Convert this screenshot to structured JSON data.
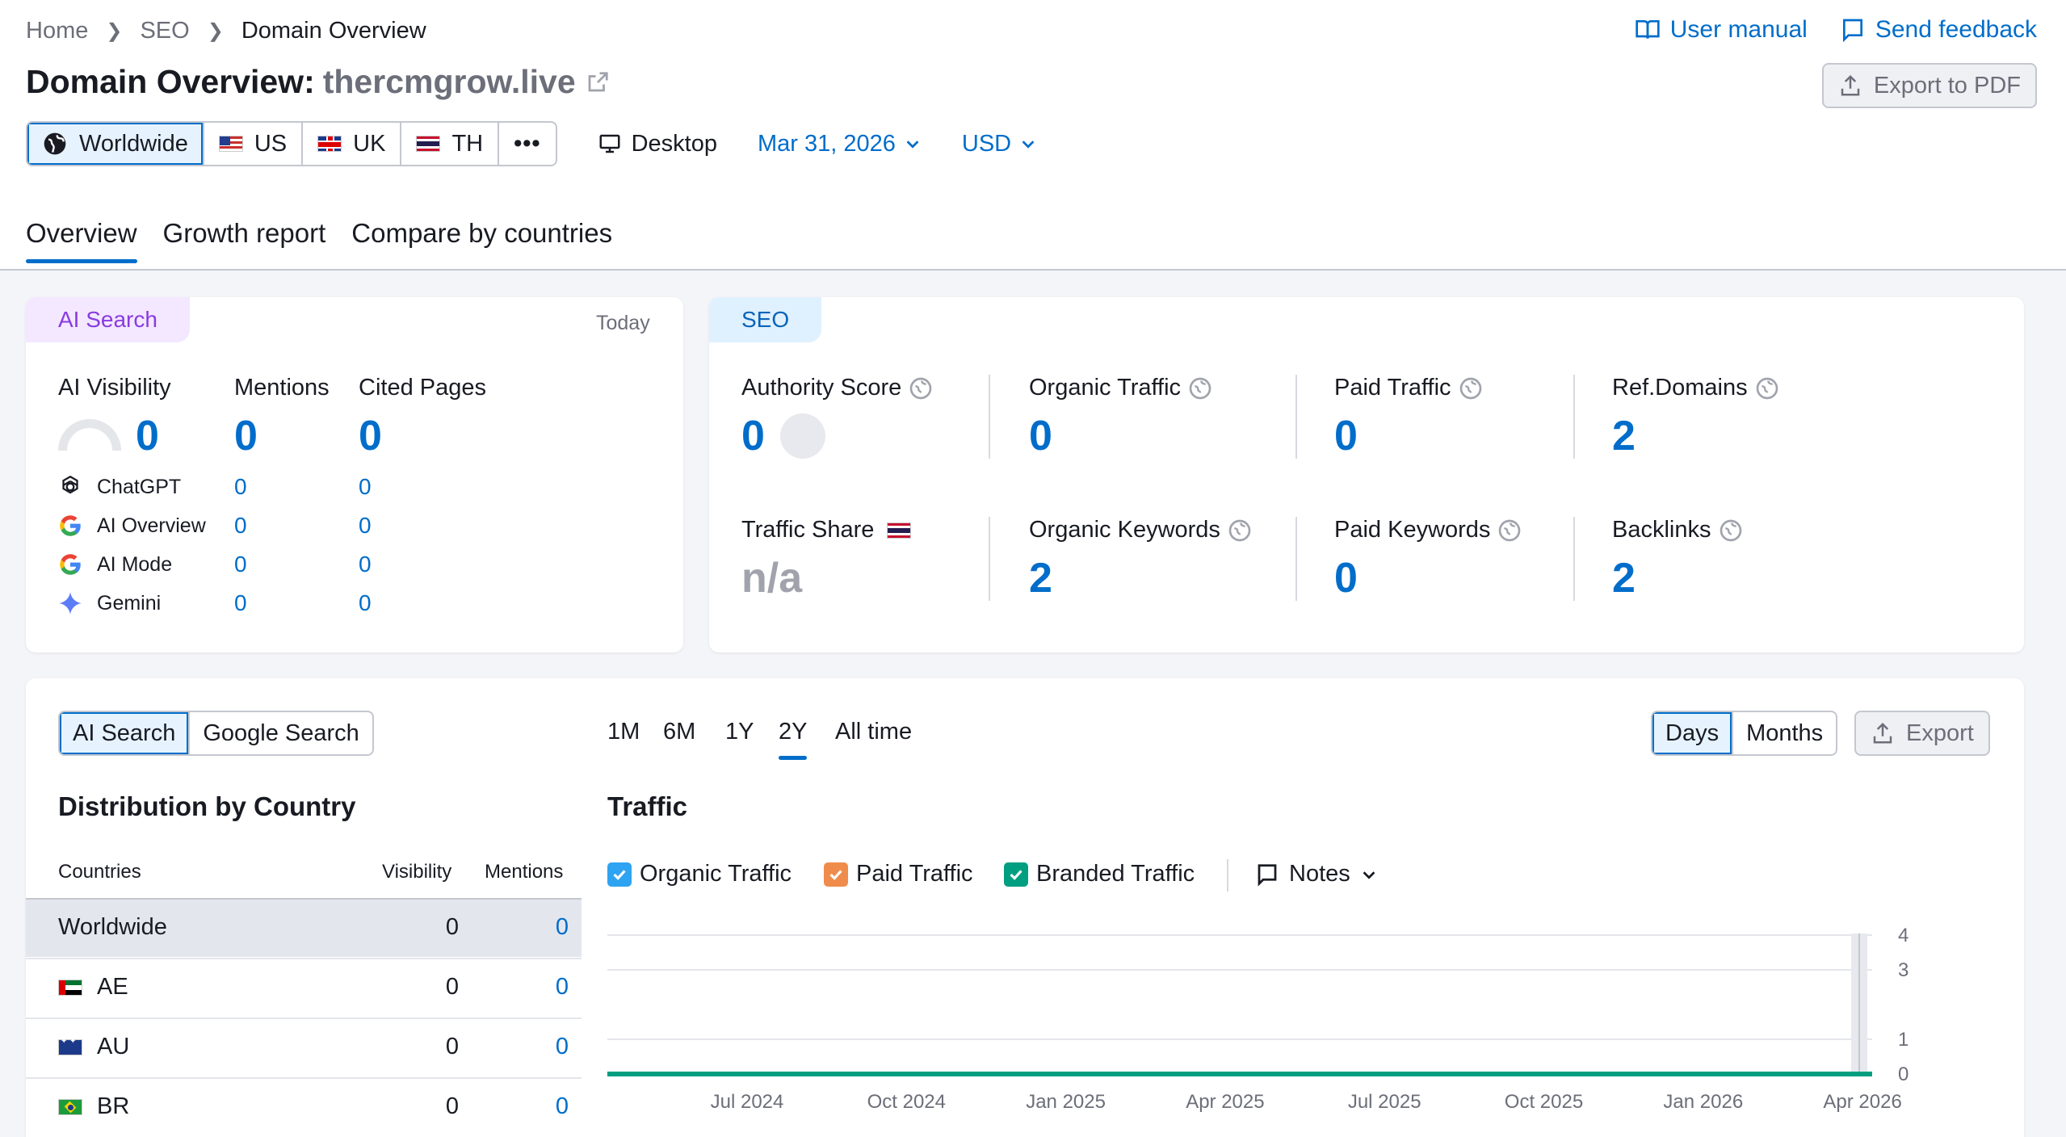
{
  "breadcrumb": {
    "items": [
      "Home",
      "SEO",
      "Domain Overview"
    ]
  },
  "header": {
    "title": "Domain Overview:",
    "domain": "thercmgrow.live",
    "user_manual": "User manual",
    "send_feedback": "Send feedback",
    "export_pdf": "Export to PDF"
  },
  "databases": [
    {
      "label": "Worldwide",
      "icon": "globe-icon"
    },
    {
      "label": "US",
      "icon": "flag-us"
    },
    {
      "label": "UK",
      "icon": "flag-uk"
    },
    {
      "label": "TH",
      "icon": "flag-th"
    }
  ],
  "more_label": "•••",
  "device": "Desktop",
  "date": "Mar 31, 2026",
  "currency": "USD",
  "tabs": [
    "Overview",
    "Growth report",
    "Compare by countries"
  ],
  "ai_card": {
    "tag": "AI Search",
    "today": "Today",
    "visibility_label": "AI Visibility",
    "visibility_value": "0",
    "mentions_label": "Mentions",
    "mentions_value": "0",
    "cited_label": "Cited Pages",
    "cited_value": "0",
    "rows": [
      {
        "name": "ChatGPT",
        "mentions": "0",
        "cited": "0",
        "icon": "chatgpt-icon"
      },
      {
        "name": "AI Overview",
        "mentions": "0",
        "cited": "0",
        "icon": "google-icon"
      },
      {
        "name": "AI Mode",
        "mentions": "0",
        "cited": "0",
        "icon": "google-icon"
      },
      {
        "name": "Gemini",
        "mentions": "0",
        "cited": "0",
        "icon": "gemini-icon"
      }
    ]
  },
  "seo_card": {
    "tag": "SEO",
    "authority_label": "Authority Score",
    "authority_value": "0",
    "organic_traffic_label": "Organic Traffic",
    "organic_traffic_value": "0",
    "paid_traffic_label": "Paid Traffic",
    "paid_traffic_value": "0",
    "ref_domains_label": "Ref.Domains",
    "ref_domains_value": "2",
    "traffic_share_label": "Traffic Share",
    "traffic_share_value": "n/a",
    "organic_keywords_label": "Organic Keywords",
    "organic_keywords_value": "2",
    "paid_keywords_label": "Paid Keywords",
    "paid_keywords_value": "0",
    "backlinks_label": "Backlinks",
    "backlinks_value": "2"
  },
  "bottom": {
    "search_toggle": [
      "AI Search",
      "Google Search"
    ],
    "periods": [
      "1M",
      "6M",
      "1Y",
      "2Y",
      "All time"
    ],
    "active_period": "2Y",
    "granularity": [
      "Days",
      "Months"
    ],
    "export": "Export",
    "distribution_title": "Distribution by Country",
    "traffic_title": "Traffic",
    "table_headers": {
      "country": "Countries",
      "visibility": "Visibility",
      "mentions": "Mentions"
    },
    "countries": [
      {
        "name": "Worldwide",
        "visibility": "0",
        "mentions": "0",
        "flag": ""
      },
      {
        "name": "AE",
        "visibility": "0",
        "mentions": "0",
        "flag": "flag-ae"
      },
      {
        "name": "AU",
        "visibility": "0",
        "mentions": "0",
        "flag": "flag-au"
      },
      {
        "name": "BR",
        "visibility": "0",
        "mentions": "0",
        "flag": "flag-br"
      }
    ],
    "legend": [
      {
        "label": "Organic Traffic",
        "color": "#2ea3f2"
      },
      {
        "label": "Paid Traffic",
        "color": "#f08c4b"
      },
      {
        "label": "Branded Traffic",
        "color": "#009f81"
      }
    ],
    "notes": "Notes"
  },
  "chart_data": {
    "type": "line",
    "x_ticks": [
      "Jul 2024",
      "Oct 2024",
      "Jan 2025",
      "Apr 2025",
      "Jul 2025",
      "Oct 2025",
      "Jan 2026",
      "Apr 2026"
    ],
    "y_ticks": [
      "4",
      "3",
      "1",
      "0"
    ],
    "ylim": [
      0,
      4
    ],
    "series": [
      {
        "name": "Organic Traffic",
        "color": "#2ea3f2",
        "values": [
          0,
          0,
          0,
          0,
          0,
          0,
          0,
          0
        ]
      },
      {
        "name": "Paid Traffic",
        "color": "#f08c4b",
        "values": [
          0,
          0,
          0,
          0,
          0,
          0,
          0,
          0
        ]
      },
      {
        "name": "Branded Traffic",
        "color": "#009f81",
        "values": [
          0,
          0,
          0,
          0,
          0,
          0,
          0,
          0
        ]
      }
    ]
  }
}
